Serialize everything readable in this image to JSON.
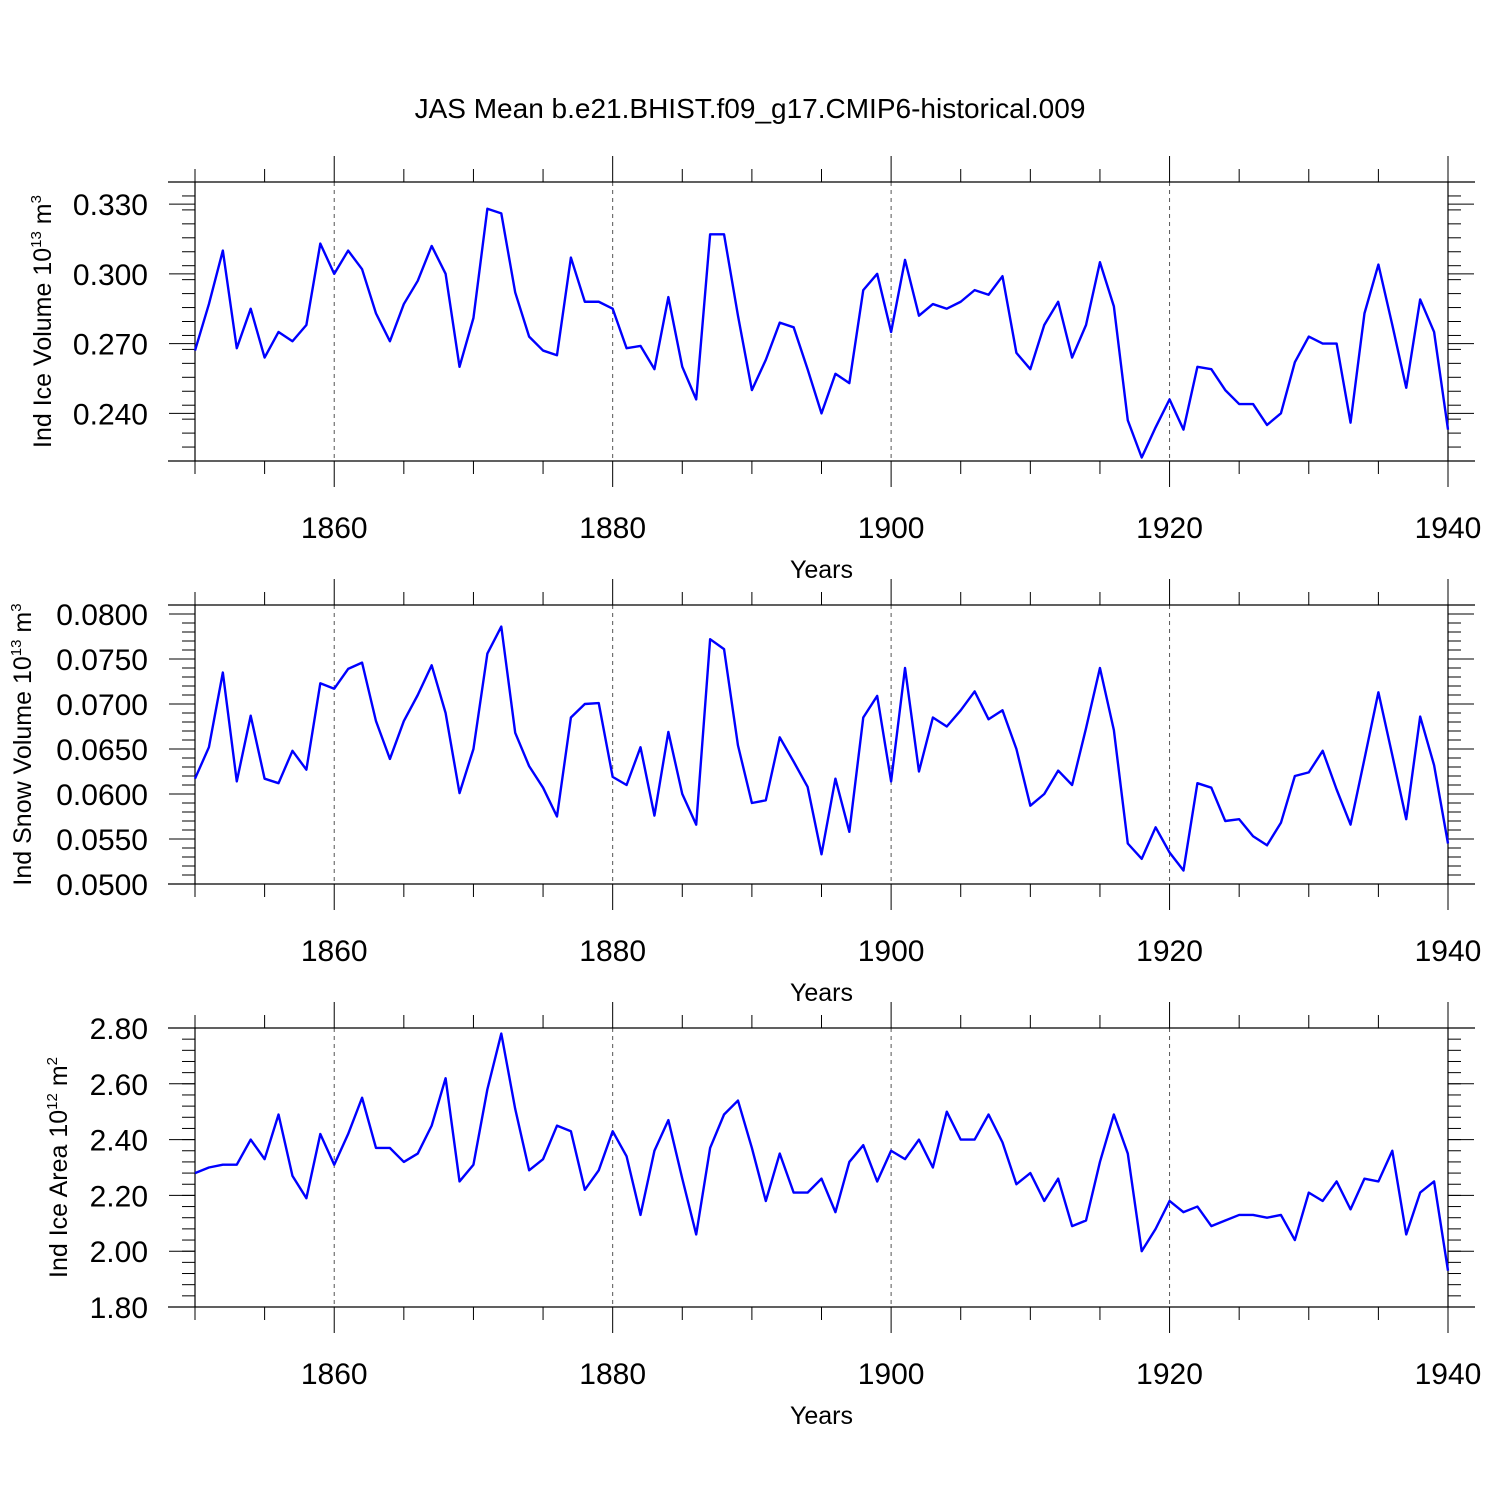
{
  "figure_title": "JAS Mean b.e21.BHIST.f09_g17.CMIP6-historical.009",
  "chart_data": [
    {
      "type": "line",
      "title": "JAS Mean b.e21.BHIST.f09_g17.CMIP6-historical.009",
      "xlabel": "Years",
      "ylabel": "Ind Ice Volume 10",
      "ylabel_exp": "13",
      "ylabel_unit": " m",
      "ylabel_unit_exp": "3",
      "xlim": [
        1850,
        1940
      ],
      "ylim": [
        0.2195,
        0.3395
      ],
      "yticks": [
        0.24,
        0.27,
        0.3,
        0.33
      ],
      "ytick_labels": [
        "0.240",
        "0.270",
        "0.300",
        "0.330"
      ],
      "yminor_step": 0.006,
      "xticks": [
        1860,
        1880,
        1900,
        1920,
        1940
      ],
      "xtick_labels": [
        "1860",
        "1880",
        "1900",
        "1920",
        "1940"
      ],
      "xminor_step": 5,
      "grid": "vertical-dashed",
      "series": [
        {
          "name": "Ind Ice Volume",
          "color": "#0000ff",
          "x_start": 1850,
          "values": [
            0.267,
            0.287,
            0.31,
            0.268,
            0.285,
            0.264,
            0.275,
            0.271,
            0.278,
            0.313,
            0.3,
            0.31,
            0.302,
            0.283,
            0.271,
            0.287,
            0.297,
            0.312,
            0.3,
            0.26,
            0.281,
            0.328,
            0.326,
            0.292,
            0.273,
            0.267,
            0.265,
            0.307,
            0.288,
            0.288,
            0.285,
            0.268,
            0.269,
            0.259,
            0.29,
            0.26,
            0.246,
            0.317,
            0.317,
            0.282,
            0.25,
            0.263,
            0.279,
            0.277,
            0.259,
            0.24,
            0.257,
            0.253,
            0.293,
            0.3,
            0.275,
            0.306,
            0.282,
            0.287,
            0.285,
            0.288,
            0.293,
            0.291,
            0.299,
            0.266,
            0.259,
            0.278,
            0.288,
            0.264,
            0.278,
            0.305,
            0.286,
            0.237,
            0.221,
            0.234,
            0.246,
            0.233,
            0.26,
            0.259,
            0.25,
            0.244,
            0.244,
            0.235,
            0.24,
            0.262,
            0.273,
            0.27,
            0.27,
            0.236,
            0.283,
            0.304,
            0.278,
            0.251,
            0.289,
            0.275,
            0.233
          ]
        }
      ]
    },
    {
      "type": "line",
      "xlabel": "Years",
      "ylabel": "Ind Snow Volume 10",
      "ylabel_exp": "13",
      "ylabel_unit": " m",
      "ylabel_unit_exp": "3",
      "xlim": [
        1850,
        1940
      ],
      "ylim": [
        0.05,
        0.081
      ],
      "yticks": [
        0.05,
        0.055,
        0.06,
        0.065,
        0.07,
        0.075,
        0.08
      ],
      "ytick_labels": [
        "0.0500",
        "0.0550",
        "0.0600",
        "0.0650",
        "0.0700",
        "0.0750",
        "0.0800"
      ],
      "yminor_step": 0.001,
      "xticks": [
        1860,
        1880,
        1900,
        1920,
        1940
      ],
      "xtick_labels": [
        "1860",
        "1880",
        "1900",
        "1920",
        "1940"
      ],
      "xminor_step": 5,
      "grid": "vertical-dashed",
      "series": [
        {
          "name": "Ind Snow Volume",
          "color": "#0000ff",
          "x_start": 1850,
          "values": [
            0.0617,
            0.0652,
            0.0735,
            0.0614,
            0.0687,
            0.0617,
            0.0612,
            0.0648,
            0.0627,
            0.0723,
            0.0717,
            0.0739,
            0.0746,
            0.0681,
            0.0639,
            0.0681,
            0.071,
            0.0743,
            0.069,
            0.0601,
            0.065,
            0.0756,
            0.0786,
            0.0668,
            0.0631,
            0.0607,
            0.0575,
            0.0685,
            0.07,
            0.0701,
            0.0619,
            0.061,
            0.0652,
            0.0576,
            0.0669,
            0.06,
            0.0566,
            0.0772,
            0.0761,
            0.0654,
            0.059,
            0.0593,
            0.0663,
            0.0636,
            0.0608,
            0.0533,
            0.0617,
            0.0558,
            0.0685,
            0.0709,
            0.0614,
            0.074,
            0.0625,
            0.0685,
            0.0675,
            0.0693,
            0.0714,
            0.0683,
            0.0693,
            0.065,
            0.0587,
            0.06,
            0.0626,
            0.061,
            0.0673,
            0.074,
            0.0671,
            0.0545,
            0.0528,
            0.0563,
            0.0535,
            0.0515,
            0.0612,
            0.0607,
            0.057,
            0.0572,
            0.0553,
            0.0543,
            0.0568,
            0.062,
            0.0624,
            0.0648,
            0.0605,
            0.0566,
            0.0639,
            0.0713,
            0.0643,
            0.0572,
            0.0686,
            0.0632,
            0.0545
          ]
        }
      ]
    },
    {
      "type": "line",
      "xlabel": "Years",
      "ylabel": "Ind Ice Area 10",
      "ylabel_exp": "12",
      "ylabel_unit": " m",
      "ylabel_unit_exp": "2",
      "xlim": [
        1850,
        1940
      ],
      "ylim": [
        1.8,
        2.8
      ],
      "yticks": [
        1.8,
        2.0,
        2.2,
        2.4,
        2.6,
        2.8
      ],
      "ytick_labels": [
        "1.80",
        "2.00",
        "2.20",
        "2.40",
        "2.60",
        "2.80"
      ],
      "yminor_step": 0.04,
      "xticks": [
        1860,
        1880,
        1900,
        1920,
        1940
      ],
      "xtick_labels": [
        "1860",
        "1880",
        "1900",
        "1920",
        "1940"
      ],
      "xminor_step": 5,
      "grid": "vertical-dashed",
      "series": [
        {
          "name": "Ind Ice Area",
          "color": "#0000ff",
          "x_start": 1850,
          "values": [
            2.28,
            2.3,
            2.31,
            2.31,
            2.4,
            2.33,
            2.49,
            2.27,
            2.19,
            2.42,
            2.31,
            2.42,
            2.55,
            2.37,
            2.37,
            2.32,
            2.35,
            2.45,
            2.62,
            2.25,
            2.31,
            2.58,
            2.78,
            2.51,
            2.29,
            2.33,
            2.45,
            2.43,
            2.22,
            2.29,
            2.43,
            2.34,
            2.13,
            2.36,
            2.47,
            2.26,
            2.06,
            2.37,
            2.49,
            2.54,
            2.37,
            2.18,
            2.35,
            2.21,
            2.21,
            2.26,
            2.14,
            2.32,
            2.38,
            2.25,
            2.36,
            2.33,
            2.4,
            2.3,
            2.5,
            2.4,
            2.4,
            2.49,
            2.39,
            2.24,
            2.28,
            2.18,
            2.26,
            2.09,
            2.11,
            2.32,
            2.49,
            2.35,
            2.0,
            2.08,
            2.18,
            2.14,
            2.16,
            2.09,
            2.11,
            2.13,
            2.13,
            2.12,
            2.13,
            2.04,
            2.21,
            2.18,
            2.25,
            2.15,
            2.26,
            2.25,
            2.36,
            2.06,
            2.21,
            2.25,
            1.93
          ]
        }
      ]
    }
  ]
}
